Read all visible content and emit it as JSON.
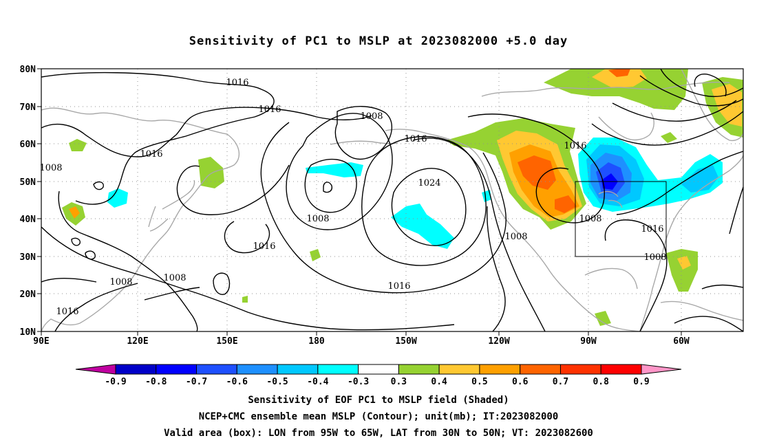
{
  "title": "Sensitivity of PC1 to MSLP at 2023082000 +5.0 day",
  "map": {
    "lat_labels": [
      "80N",
      "70N",
      "60N",
      "50N",
      "40N",
      "30N",
      "20N",
      "10N"
    ],
    "lon_labels": [
      "90E",
      "120E",
      "150E",
      "180",
      "150W",
      "120W",
      "90W",
      "60W"
    ],
    "contour_labels": [
      "1016",
      "1016",
      "1016",
      "1008",
      "1016",
      "1016",
      "1024",
      "1008",
      "1016",
      "1008",
      "1016",
      "1008",
      "1016",
      "1008",
      "1008",
      "1008",
      "1016",
      "1008"
    ],
    "box": {
      "lon_from": "95W",
      "lon_to": "65W",
      "lat_from": "30N",
      "lat_to": "50N"
    }
  },
  "colorbar": {
    "labels": [
      "-0.9",
      "-0.8",
      "-0.7",
      "-0.6",
      "-0.5",
      "-0.4",
      "-0.3",
      "0.3",
      "0.4",
      "0.5",
      "0.6",
      "0.7",
      "0.8",
      "0.9"
    ],
    "colors": [
      "#c000a0",
      "#0000c8",
      "#0000ff",
      "#1e50ff",
      "#1e90ff",
      "#00c8ff",
      "#00ffff",
      "#ffffff",
      "#96d232",
      "#ffc832",
      "#ffa000",
      "#ff6400",
      "#ff3200",
      "#ff0000",
      "#ff96c8"
    ]
  },
  "captions": {
    "line1": "Sensitivity of EOF PC1 to MSLP field (Shaded)",
    "line2": "NCEP+CMC ensemble mean MSLP (Contour); unit(mb); IT:2023082000",
    "line3": "Valid area (box): LON from 95W to 65W, LAT from 30N to 50N; VT: 2023082600"
  }
}
